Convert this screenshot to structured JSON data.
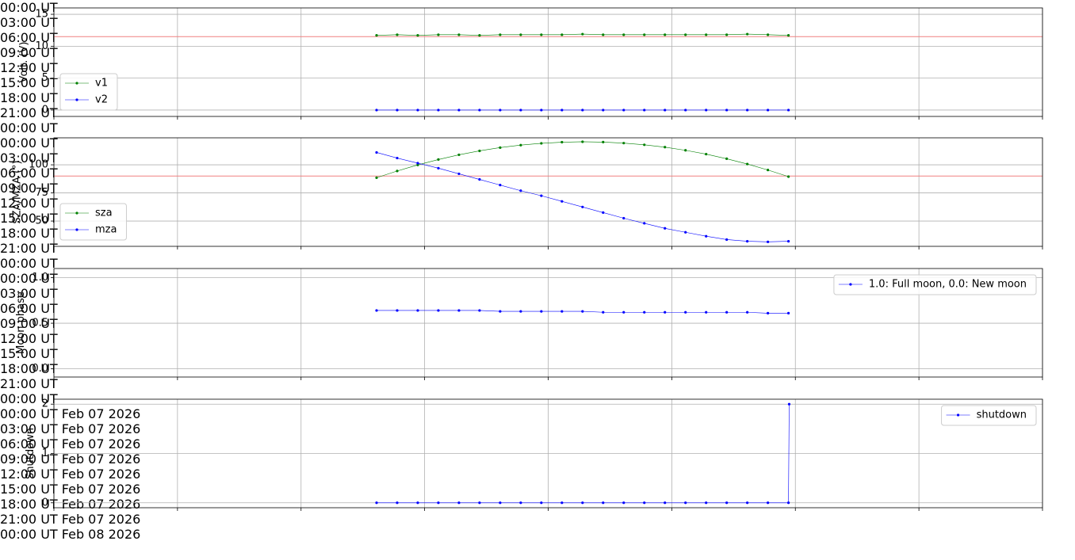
{
  "chart_data": [
    {
      "type": "line",
      "ylabel": "Volt. (V)",
      "x": [
        "07:50",
        "08:20",
        "08:50",
        "09:20",
        "09:50",
        "10:20",
        "10:50",
        "11:20",
        "11:50",
        "12:20",
        "12:50",
        "13:20",
        "13:50",
        "14:20",
        "14:50",
        "15:20",
        "15:50",
        "16:20",
        "16:50",
        "17:20",
        "17:50"
      ],
      "series": [
        {
          "name": "v1",
          "color": "#008000",
          "values": [
            11.7,
            11.8,
            11.7,
            11.8,
            11.8,
            11.7,
            11.8,
            11.8,
            11.8,
            11.8,
            11.9,
            11.8,
            11.8,
            11.8,
            11.8,
            11.8,
            11.8,
            11.8,
            11.9,
            11.8,
            11.7
          ]
        },
        {
          "name": "v2",
          "color": "#0000ff",
          "values": [
            0,
            0,
            0,
            0,
            0,
            0,
            0,
            0,
            0,
            0,
            0,
            0,
            0,
            0,
            0,
            0,
            0,
            0,
            0,
            0,
            0
          ]
        }
      ],
      "xlim": [
        "00:00",
        "24:00"
      ],
      "ylim": [
        -1,
        16
      ],
      "xticks": [
        {
          "value": "00:00",
          "label": "00:00 UT"
        },
        {
          "value": "03:00",
          "label": "03:00 UT"
        },
        {
          "value": "06:00",
          "label": "06:00 UT"
        },
        {
          "value": "09:00",
          "label": "09:00 UT"
        },
        {
          "value": "12:00",
          "label": "12:00 UT"
        },
        {
          "value": "15:00",
          "label": "15:00 UT"
        },
        {
          "value": "18:00",
          "label": "18:00 UT"
        },
        {
          "value": "21:00",
          "label": "21:00 UT"
        },
        {
          "value": "24:00",
          "label": "00:00 UT"
        }
      ],
      "yticks": [
        0,
        5,
        10,
        15
      ],
      "grid": true,
      "legend": "lower left",
      "hlines": [
        {
          "value": 11.5,
          "color": "#f08080"
        }
      ]
    },
    {
      "type": "line",
      "ylabel": "SZA/MZA (°)",
      "x": [
        "07:50",
        "08:20",
        "08:50",
        "09:20",
        "09:50",
        "10:20",
        "10:50",
        "11:20",
        "11:50",
        "12:20",
        "12:50",
        "13:20",
        "13:50",
        "14:20",
        "14:50",
        "15:20",
        "15:50",
        "16:20",
        "16:50",
        "17:20",
        "17:50"
      ],
      "series": [
        {
          "name": "sza",
          "color": "#008000",
          "values": [
            88.5,
            94.5,
            99.9,
            104.7,
            108.9,
            112.4,
            115.3,
            117.5,
            119.1,
            120.1,
            120.5,
            120.2,
            119.3,
            117.8,
            115.7,
            112.9,
            109.5,
            105.4,
            100.7,
            95.4,
            89.5
          ]
        },
        {
          "name": "mza",
          "color": "#0000ff",
          "values": [
            111,
            106,
            101.5,
            97,
            92,
            87,
            82,
            77,
            72.5,
            67.5,
            62.5,
            57.5,
            52.5,
            48,
            43.5,
            40,
            36.5,
            33.5,
            32,
            31.5,
            32
          ]
        }
      ],
      "xlim": [
        "00:00",
        "24:00"
      ],
      "ylim": [
        27.5,
        124
      ],
      "xticks": [
        {
          "value": "00:00",
          "label": "00:00 UT"
        },
        {
          "value": "03:00",
          "label": "03:00 UT"
        },
        {
          "value": "06:00",
          "label": "06:00 UT"
        },
        {
          "value": "09:00",
          "label": "09:00 UT"
        },
        {
          "value": "12:00",
          "label": "12:00 UT"
        },
        {
          "value": "15:00",
          "label": "15:00 UT"
        },
        {
          "value": "18:00",
          "label": "18:00 UT"
        },
        {
          "value": "21:00",
          "label": "21:00 UT"
        },
        {
          "value": "24:00",
          "label": "00:00 UT"
        }
      ],
      "yticks": [
        50,
        75,
        100
      ],
      "grid": true,
      "legend": "lower left",
      "hlines": [
        {
          "value": 90,
          "color": "#f08080"
        }
      ]
    },
    {
      "type": "line",
      "ylabel": "Moon phase",
      "x": [
        "07:50",
        "08:20",
        "08:50",
        "09:20",
        "09:50",
        "10:20",
        "10:50",
        "11:20",
        "11:50",
        "12:20",
        "12:50",
        "13:20",
        "13:50",
        "14:20",
        "14:50",
        "15:20",
        "15:50",
        "16:20",
        "16:50",
        "17:20",
        "17:50"
      ],
      "series": [
        {
          "name": "1.0: Full moon, 0.0: New moon",
          "color": "#0000ff",
          "values": [
            0.64,
            0.64,
            0.64,
            0.64,
            0.64,
            0.64,
            0.63,
            0.63,
            0.63,
            0.63,
            0.63,
            0.62,
            0.62,
            0.62,
            0.62,
            0.62,
            0.62,
            0.62,
            0.62,
            0.61,
            0.61
          ]
        }
      ],
      "xlim": [
        "00:00",
        "24:00"
      ],
      "ylim": [
        -0.09,
        1.1
      ],
      "xticks": [
        {
          "value": "00:00",
          "label": "00:00 UT"
        },
        {
          "value": "03:00",
          "label": "03:00 UT"
        },
        {
          "value": "06:00",
          "label": "06:00 UT"
        },
        {
          "value": "09:00",
          "label": "09:00 UT"
        },
        {
          "value": "12:00",
          "label": "12:00 UT"
        },
        {
          "value": "15:00",
          "label": "15:00 UT"
        },
        {
          "value": "18:00",
          "label": "18:00 UT"
        },
        {
          "value": "21:00",
          "label": "21:00 UT"
        },
        {
          "value": "24:00",
          "label": "00:00 UT"
        }
      ],
      "yticks": [
        {
          "value": 0,
          "label": "0.0"
        },
        0.5,
        {
          "value": 1,
          "label": "1.0"
        }
      ],
      "grid": true,
      "legend": "upper right"
    },
    {
      "type": "line",
      "ylabel": "Shutdown",
      "x": [
        "2026-02-07 07:50",
        "2026-02-07 08:20",
        "2026-02-07 08:50",
        "2026-02-07 09:20",
        "2026-02-07 09:50",
        "2026-02-07 10:20",
        "2026-02-07 10:50",
        "2026-02-07 11:20",
        "2026-02-07 11:50",
        "2026-02-07 12:20",
        "2026-02-07 12:50",
        "2026-02-07 13:20",
        "2026-02-07 13:50",
        "2026-02-07 14:20",
        "2026-02-07 14:50",
        "2026-02-07 15:20",
        "2026-02-07 15:50",
        "2026-02-07 16:20",
        "2026-02-07 16:50",
        "2026-02-07 17:20",
        "2026-02-07 17:50",
        "2026-02-07 17:51"
      ],
      "series": [
        {
          "name": "shutdown",
          "color": "#0000ff",
          "values": [
            0,
            0,
            0,
            0,
            0,
            0,
            0,
            0,
            0,
            0,
            0,
            0,
            0,
            0,
            0,
            0,
            0,
            0,
            0,
            0,
            0,
            2
          ]
        }
      ],
      "xlim": [
        "2026-02-07 00:00",
        "2026-02-08 00:00"
      ],
      "ylim": [
        -0.1,
        2.1
      ],
      "xticks": [
        {
          "value": "2026-02-07 00:00",
          "label": "00:00 UT\nFeb 07\n2026"
        },
        {
          "value": "2026-02-07 03:00",
          "label": "03:00 UT\nFeb 07\n2026"
        },
        {
          "value": "2026-02-07 06:00",
          "label": "06:00 UT\nFeb 07\n2026"
        },
        {
          "value": "2026-02-07 09:00",
          "label": "09:00 UT\nFeb 07\n2026"
        },
        {
          "value": "2026-02-07 12:00",
          "label": "12:00 UT\nFeb 07\n2026"
        },
        {
          "value": "2026-02-07 15:00",
          "label": "15:00 UT\nFeb 07\n2026"
        },
        {
          "value": "2026-02-07 18:00",
          "label": "18:00 UT\nFeb 07\n2026"
        },
        {
          "value": "2026-02-07 21:00",
          "label": "21:00 UT\nFeb 07\n2026"
        },
        {
          "value": "2026-02-08 00:00",
          "label": "00:00 UT\nFeb 08\n2026"
        }
      ],
      "yticks": [
        0,
        1,
        2
      ],
      "grid": true,
      "legend": "upper right"
    }
  ]
}
